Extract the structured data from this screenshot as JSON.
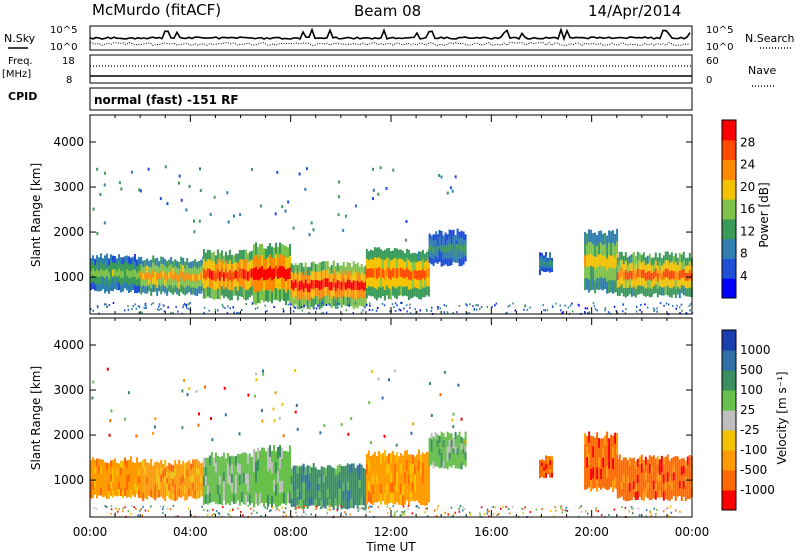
{
  "header": {
    "station": "McMurdo (fitACF)",
    "beam": "Beam 08",
    "date": "14/Apr/2014"
  },
  "top_panels": {
    "nsky_label": "N.Sky",
    "nsearch_label": "N.Search",
    "count_ticks_left": [
      "10^5",
      "10^0"
    ],
    "count_ticks_right": [
      "10^5",
      "10^0"
    ],
    "freq_label": "Freq.",
    "freq_unit": "[MHz]",
    "freq_ticks": [
      "18",
      "8"
    ],
    "nave_label": "Nave",
    "nave_ticks": [
      "60",
      "0"
    ],
    "cpid_label": "CPID",
    "cpid_text": "normal (fast) -151 RF"
  },
  "chart_data": [
    {
      "type": "heatmap",
      "name": "power-panel",
      "ylabel": "Slant Range [km]",
      "xlabel": "",
      "x_ticks": [
        "00:00",
        "04:00",
        "08:00",
        "12:00",
        "16:00",
        "20:00",
        "00:00"
      ],
      "x_range_hours": [
        0,
        24
      ],
      "y_ticks": [
        1000,
        2000,
        3000,
        4000
      ],
      "ylim": [
        180,
        4600
      ],
      "colorbar": {
        "label": "Power [dB]",
        "ticks": [
          4,
          8,
          12,
          16,
          20,
          24,
          28
        ],
        "range": [
          0,
          32
        ],
        "colors": [
          "#0000ff",
          "#1f4fd8",
          "#2f7fb0",
          "#3a9a5a",
          "#7fc24a",
          "#f2c200",
          "#ff8a00",
          "#ff4a00",
          "#ff0000"
        ]
      },
      "echo_bands": [
        {
          "t0": 0.0,
          "t1": 2.0,
          "r0": 700,
          "r1": 1450,
          "peak_db": 16
        },
        {
          "t0": 2.0,
          "t1": 4.5,
          "r0": 650,
          "r1": 1400,
          "peak_db": 22
        },
        {
          "t0": 4.5,
          "t1": 6.5,
          "r0": 550,
          "r1": 1550,
          "peak_db": 28
        },
        {
          "t0": 6.5,
          "t1": 8.0,
          "r0": 450,
          "r1": 1700,
          "peak_db": 30
        },
        {
          "t0": 8.0,
          "t1": 11.0,
          "r0": 350,
          "r1": 1300,
          "peak_db": 30
        },
        {
          "t0": 11.0,
          "t1": 13.5,
          "r0": 550,
          "r1": 1600,
          "peak_db": 26
        },
        {
          "t0": 13.5,
          "t1": 15.0,
          "r0": 1300,
          "r1": 2000,
          "peak_db": 12
        },
        {
          "t0": 17.9,
          "t1": 18.4,
          "r0": 1100,
          "r1": 1500,
          "peak_db": 12
        },
        {
          "t0": 19.7,
          "t1": 21.0,
          "r0": 700,
          "r1": 2000,
          "peak_db": 20
        },
        {
          "t0": 21.0,
          "t1": 24.0,
          "r0": 600,
          "r1": 1500,
          "peak_db": 26
        }
      ]
    },
    {
      "type": "heatmap",
      "name": "velocity-panel",
      "ylabel": "Slant Range [km]",
      "xlabel": "Time UT",
      "x_ticks": [
        "00:00",
        "04:00",
        "08:00",
        "12:00",
        "16:00",
        "20:00",
        "00:00"
      ],
      "x_range_hours": [
        0,
        24
      ],
      "y_ticks": [
        1000,
        2000,
        3000,
        4000
      ],
      "ylim": [
        180,
        4600
      ],
      "colorbar": {
        "label": "Velocity [m s⁻¹]",
        "ticks": [
          "1000",
          "500",
          "100",
          "25",
          "-25",
          "-100",
          "-500",
          "-1000"
        ],
        "colors": [
          "#1c3fb0",
          "#2f6fa8",
          "#3a8f60",
          "#66c04a",
          "#bfbfbf",
          "#f2c200",
          "#ff9a00",
          "#ff6a00",
          "#ff0000"
        ]
      },
      "echo_bands": [
        {
          "t0": 0.0,
          "t1": 2.0,
          "r0": 650,
          "r1": 1450,
          "vel": "-100"
        },
        {
          "t0": 2.0,
          "t1": 4.5,
          "r0": 600,
          "r1": 1400,
          "vel": "-100"
        },
        {
          "t0": 4.5,
          "t1": 6.5,
          "r0": 500,
          "r1": 1550,
          "vel": "100"
        },
        {
          "t0": 6.5,
          "t1": 8.0,
          "r0": 450,
          "r1": 1700,
          "vel": "100"
        },
        {
          "t0": 8.0,
          "t1": 11.0,
          "r0": 400,
          "r1": 1300,
          "vel": "500"
        },
        {
          "t0": 11.0,
          "t1": 13.5,
          "r0": 500,
          "r1": 1600,
          "vel": "-100"
        },
        {
          "t0": 13.5,
          "t1": 15.0,
          "r0": 1300,
          "r1": 2000,
          "vel": "100"
        },
        {
          "t0": 17.9,
          "t1": 18.4,
          "r0": 1100,
          "r1": 1500,
          "vel": "-500"
        },
        {
          "t0": 19.7,
          "t1": 21.0,
          "r0": 800,
          "r1": 2000,
          "vel": "-500"
        },
        {
          "t0": 21.0,
          "t1": 24.0,
          "r0": 600,
          "r1": 1500,
          "vel": "-500"
        }
      ]
    }
  ]
}
